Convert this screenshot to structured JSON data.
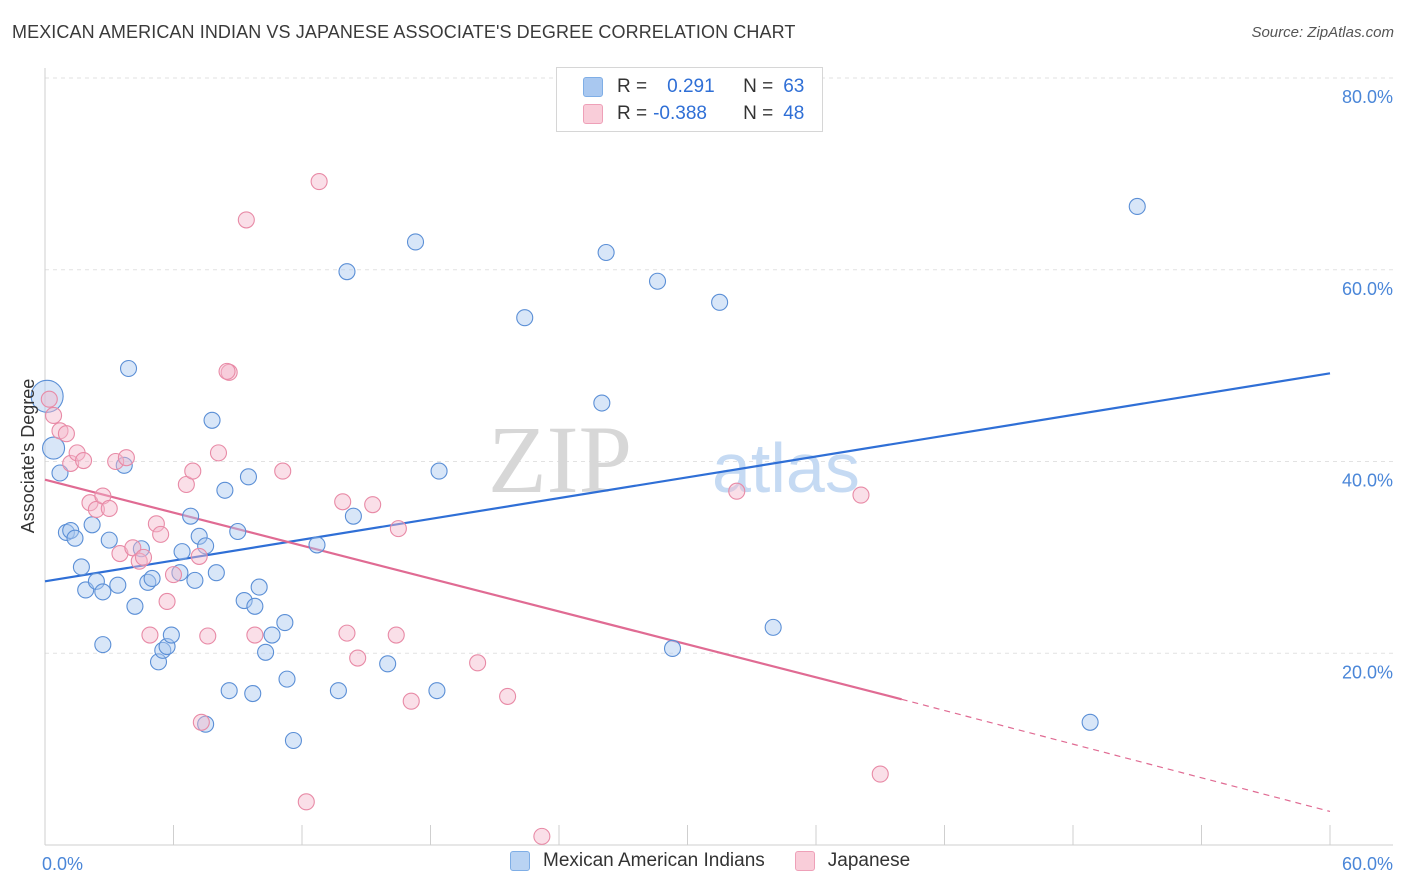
{
  "title": "MEXICAN AMERICAN INDIAN VS JAPANESE ASSOCIATE'S DEGREE CORRELATION CHART",
  "source": "Source: ZipAtlas.com",
  "watermark": {
    "zip": "ZIP",
    "atlas": "atlas"
  },
  "legend_top": {
    "rows": [
      {
        "r_label": "R =",
        "r_value": "0.291",
        "n_label": "N =",
        "n_value": "63",
        "color": "#a9c8f0"
      },
      {
        "r_label": "R =",
        "r_value": "-0.388",
        "n_label": "N =",
        "n_value": "48",
        "color": "#f5b8cb"
      }
    ]
  },
  "chart_data": {
    "type": "scatter",
    "title": "MEXICAN AMERICAN INDIAN VS JAPANESE ASSOCIATE'S DEGREE CORRELATION CHART",
    "xlabel": "",
    "ylabel": "Associate's Degree",
    "xlim": [
      0,
      60
    ],
    "ylim": [
      0,
      80
    ],
    "x_tick_labels": [
      "0.0%",
      "60.0%"
    ],
    "y_tick_labels": [
      "20.0%",
      "40.0%",
      "60.0%",
      "80.0%"
    ],
    "y_ticks": [
      20,
      40,
      60,
      80
    ],
    "grid": true,
    "legend": "bottom-center",
    "series": [
      {
        "name": "Mexican American Indians",
        "color": "#a9c8f0",
        "stroke": "#5b8fd6",
        "trend": {
          "x0": 0,
          "y0": 27.5,
          "x1": 60,
          "y1": 49.2,
          "color": "#2f6fd6"
        },
        "points": [
          [
            0.1,
            46.8
          ],
          [
            0.4,
            41.4
          ],
          [
            0.7,
            38.8
          ],
          [
            1.0,
            32.6
          ],
          [
            1.2,
            32.8
          ],
          [
            1.4,
            32.0
          ],
          [
            1.7,
            29.0
          ],
          [
            1.9,
            26.6
          ],
          [
            2.2,
            33.4
          ],
          [
            2.4,
            27.5
          ],
          [
            2.7,
            26.4
          ],
          [
            3.0,
            31.8
          ],
          [
            3.4,
            27.1
          ],
          [
            3.7,
            39.6
          ],
          [
            3.9,
            49.7
          ],
          [
            4.2,
            24.9
          ],
          [
            4.5,
            30.9
          ],
          [
            4.8,
            27.4
          ],
          [
            5.0,
            27.8
          ],
          [
            5.3,
            19.1
          ],
          [
            5.5,
            20.3
          ],
          [
            5.7,
            20.7
          ],
          [
            5.9,
            21.9
          ],
          [
            6.3,
            28.4
          ],
          [
            6.4,
            30.6
          ],
          [
            6.8,
            34.3
          ],
          [
            7.0,
            27.6
          ],
          [
            7.2,
            32.2
          ],
          [
            7.5,
            31.2
          ],
          [
            7.8,
            44.3
          ],
          [
            8.0,
            28.4
          ],
          [
            8.4,
            37.0
          ],
          [
            8.6,
            16.1
          ],
          [
            9.0,
            32.7
          ],
          [
            9.3,
            25.5
          ],
          [
            9.5,
            38.4
          ],
          [
            9.7,
            15.8
          ],
          [
            10.0,
            26.9
          ],
          [
            10.3,
            20.1
          ],
          [
            10.6,
            21.9
          ],
          [
            11.2,
            23.2
          ],
          [
            11.3,
            17.3
          ],
          [
            11.6,
            10.9
          ],
          [
            13.7,
            16.1
          ],
          [
            16.0,
            18.9
          ],
          [
            2.7,
            20.9
          ],
          [
            7.5,
            12.6
          ],
          [
            9.8,
            24.9
          ],
          [
            12.7,
            31.3
          ],
          [
            14.4,
            34.3
          ],
          [
            14.1,
            59.8
          ],
          [
            17.3,
            62.9
          ],
          [
            18.3,
            16.1
          ],
          [
            18.4,
            39.0
          ],
          [
            22.4,
            55.0
          ],
          [
            26.0,
            46.1
          ],
          [
            26.2,
            61.8
          ],
          [
            28.6,
            58.8
          ],
          [
            31.5,
            56.6
          ],
          [
            29.3,
            20.5
          ],
          [
            34.0,
            22.7
          ],
          [
            51.0,
            66.6
          ],
          [
            48.8,
            12.8
          ]
        ]
      },
      {
        "name": "Japanese",
        "color": "#f5b8cb",
        "stroke": "#e88aa6",
        "trend": {
          "x0": 0,
          "y0": 38.1,
          "x1": 40,
          "y1": 15.2,
          "dash_x1": 60,
          "dash_y1": 3.5,
          "color": "#e06b93"
        },
        "points": [
          [
            0.2,
            46.5
          ],
          [
            0.4,
            44.8
          ],
          [
            0.7,
            43.2
          ],
          [
            1.0,
            42.9
          ],
          [
            1.2,
            39.8
          ],
          [
            1.5,
            40.9
          ],
          [
            1.8,
            40.1
          ],
          [
            2.1,
            35.7
          ],
          [
            2.4,
            35.0
          ],
          [
            2.7,
            36.4
          ],
          [
            3.0,
            35.1
          ],
          [
            3.3,
            40.0
          ],
          [
            3.5,
            30.4
          ],
          [
            3.8,
            40.4
          ],
          [
            4.1,
            31.0
          ],
          [
            4.4,
            29.6
          ],
          [
            4.6,
            30.0
          ],
          [
            4.9,
            21.9
          ],
          [
            5.2,
            33.5
          ],
          [
            5.4,
            32.4
          ],
          [
            5.7,
            25.4
          ],
          [
            6.0,
            28.2
          ],
          [
            6.6,
            37.6
          ],
          [
            6.9,
            39.0
          ],
          [
            7.2,
            30.1
          ],
          [
            7.6,
            21.8
          ],
          [
            7.3,
            12.8
          ],
          [
            8.1,
            40.9
          ],
          [
            8.6,
            49.3
          ],
          [
            8.5,
            49.4
          ],
          [
            9.4,
            65.2
          ],
          [
            9.8,
            21.9
          ],
          [
            11.1,
            39.0
          ],
          [
            12.2,
            4.5
          ],
          [
            12.8,
            69.2
          ],
          [
            13.9,
            35.8
          ],
          [
            14.1,
            22.1
          ],
          [
            14.6,
            19.5
          ],
          [
            15.3,
            35.5
          ],
          [
            16.5,
            33.0
          ],
          [
            16.4,
            21.9
          ],
          [
            17.1,
            15.0
          ],
          [
            20.2,
            19.0
          ],
          [
            21.6,
            15.5
          ],
          [
            23.2,
            0.9
          ],
          [
            32.3,
            36.9
          ],
          [
            38.1,
            36.5
          ],
          [
            39.0,
            7.4
          ]
        ]
      }
    ]
  },
  "bottom_legend": [
    {
      "label": "Mexican American Indians",
      "color": "#a9c8f0"
    },
    {
      "label": "Japanese",
      "color": "#f5b8cb"
    }
  ]
}
